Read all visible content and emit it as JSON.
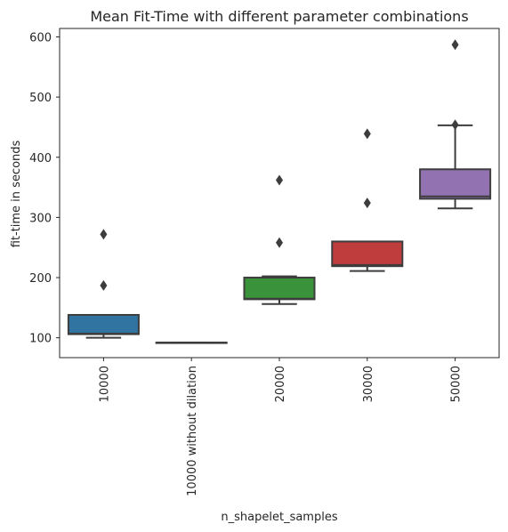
{
  "chart_data": {
    "type": "box",
    "title": "Mean Fit-Time with different parameter combinations",
    "xlabel": "n_shapelet_samples",
    "ylabel": "fit-time in seconds",
    "ylim": [
      67,
      614
    ],
    "yticks": [
      100,
      200,
      300,
      400,
      500,
      600
    ],
    "grid": false,
    "categories": [
      "10000",
      "10000 without dilation",
      "20000",
      "30000",
      "50000"
    ],
    "boxes": [
      {
        "name": "10000",
        "color": "#3274a1",
        "whisker_low": 100,
        "q1": 106,
        "median": 107,
        "q3": 138,
        "whisker_high": 138,
        "outliers": [
          187,
          272
        ]
      },
      {
        "name": "10000 without dilation",
        "color": "#e1812c",
        "whisker_low": 92,
        "q1": 92,
        "median": 92,
        "q3": 92,
        "whisker_high": 92,
        "outliers": []
      },
      {
        "name": "20000",
        "color": "#3a923a",
        "whisker_low": 156,
        "q1": 164,
        "median": 165,
        "q3": 200,
        "whisker_high": 202,
        "outliers": [
          258,
          362
        ]
      },
      {
        "name": "30000",
        "color": "#c03d3e",
        "whisker_low": 211,
        "q1": 219,
        "median": 221,
        "q3": 260,
        "whisker_high": 260,
        "outliers": [
          324,
          439
        ]
      },
      {
        "name": "50000",
        "color": "#9372b2",
        "whisker_low": 315,
        "q1": 331,
        "median": 335,
        "q3": 380,
        "whisker_high": 453,
        "outliers": [
          454,
          587
        ]
      }
    ]
  }
}
